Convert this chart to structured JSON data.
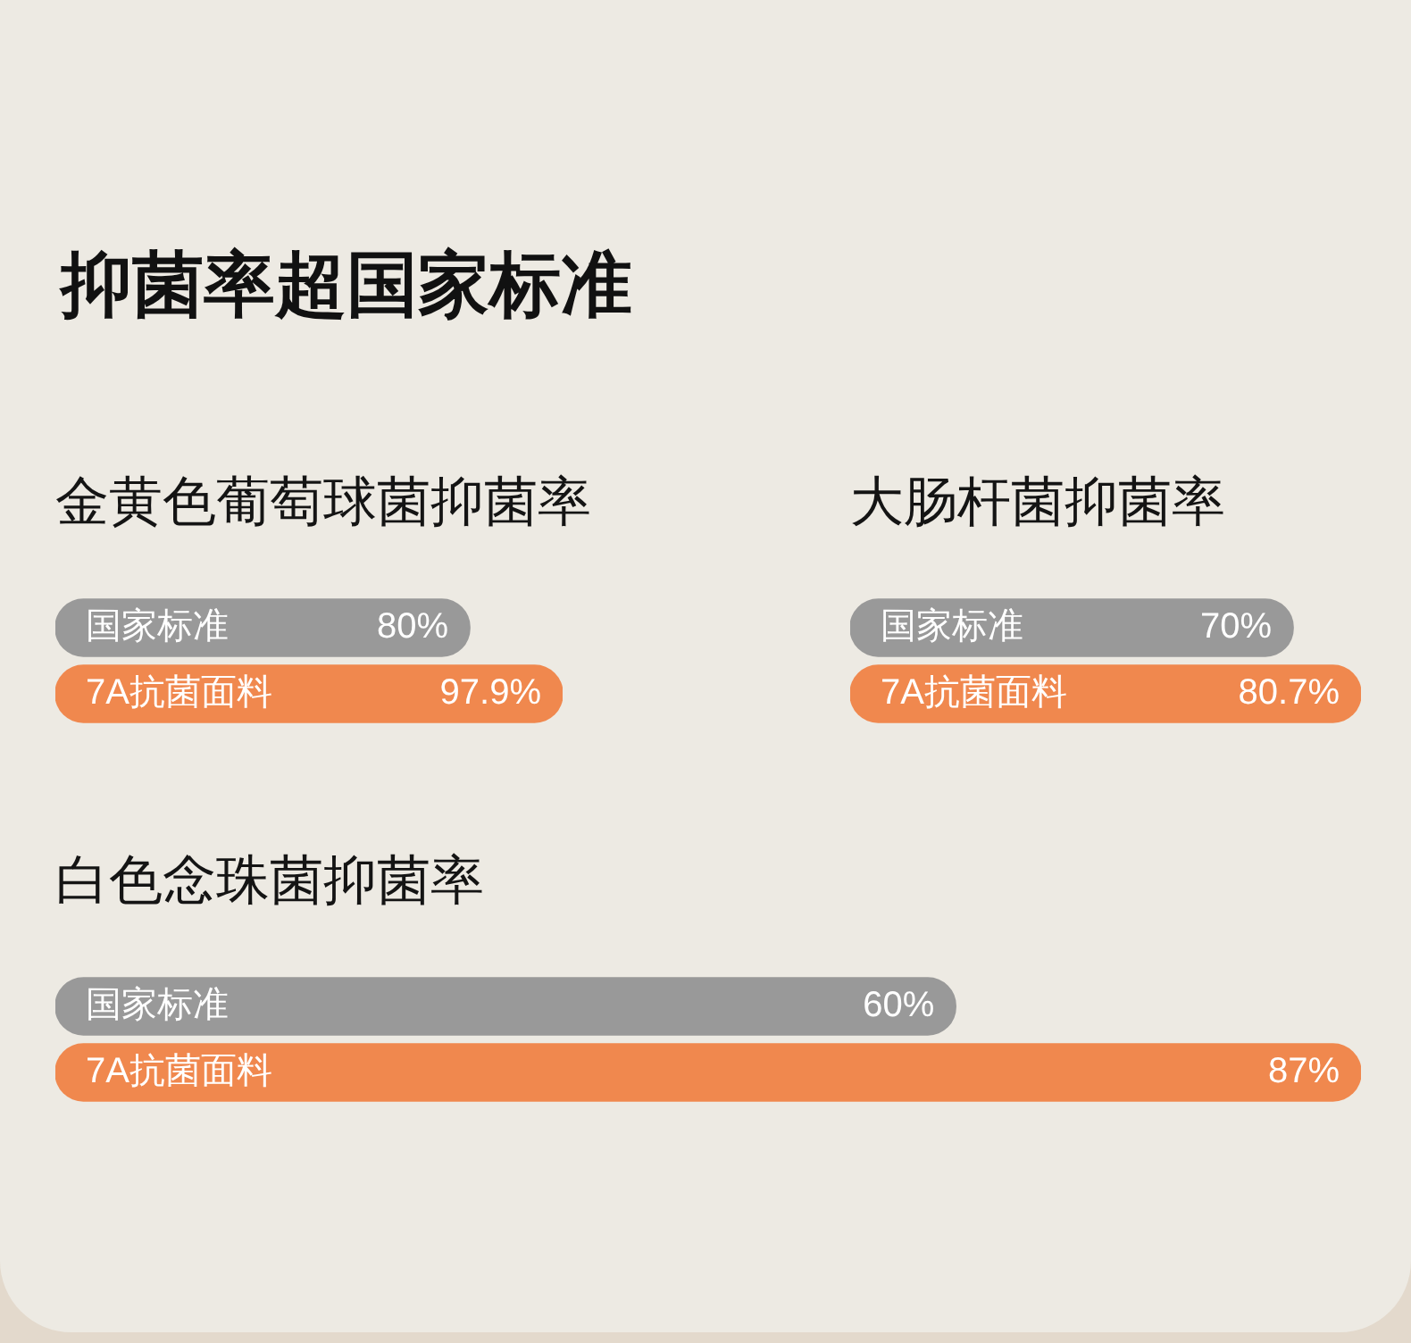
{
  "chart_data": [
    {
      "type": "other",
      "title": "抑菌率超国家标准"
    },
    {
      "type": "bar",
      "orientation": "horizontal",
      "title": "金黄色葡萄球菌抑菌率",
      "categories": [
        "国家标准",
        "7A抗菌面料"
      ],
      "values": [
        80,
        97.9
      ],
      "colors": [
        "#999999",
        "#f0884e"
      ],
      "value_labels": [
        "80%",
        "97.9%"
      ],
      "tick_labels": "y"
    },
    {
      "type": "bar",
      "orientation": "horizontal",
      "title": "大肠杆菌抑菌率",
      "categories": [
        "国家标准",
        "7A抗菌面料"
      ],
      "values": [
        70,
        80.7
      ],
      "colors": [
        "#999999",
        "#f0884e"
      ],
      "value_labels": [
        "70%",
        "80.7%"
      ],
      "tick_labels": "y"
    },
    {
      "type": "bar",
      "orientation": "horizontal",
      "title": "白色念珠菌抑菌率",
      "categories": [
        "国家标准",
        "7A抗菌面料"
      ],
      "values": [
        60,
        87
      ],
      "colors": [
        "#999999",
        "#f0884e"
      ],
      "value_labels": [
        "60%",
        "87%"
      ],
      "tick_labels": "y"
    }
  ]
}
